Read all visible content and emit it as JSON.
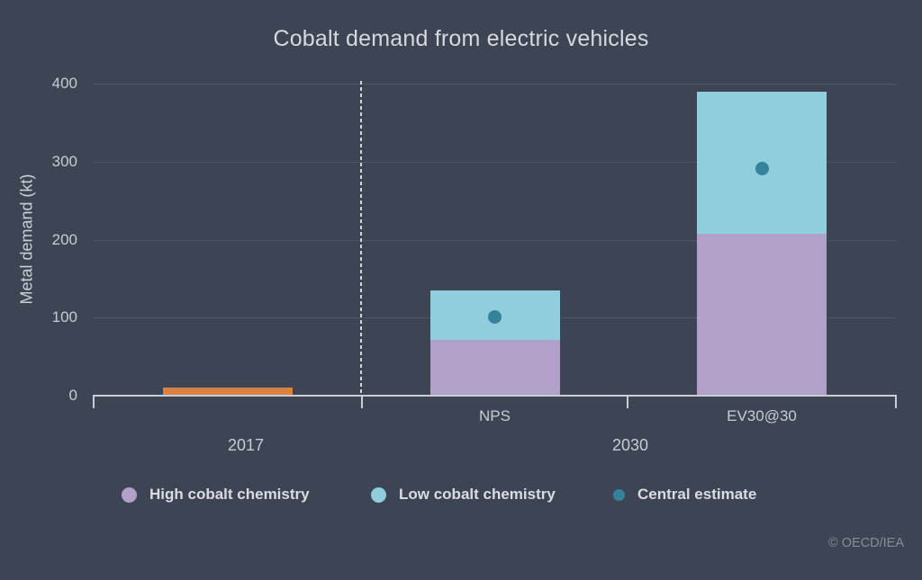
{
  "title": "Cobalt demand from electric vehicles",
  "copyright": "© OECD/IEA",
  "colors": {
    "background": "#3d4554",
    "orange": "#d98140",
    "purple": "#b1a1c9",
    "blue": "#90cedd",
    "teal": "#34839b",
    "axis": "#c8cdd8",
    "grid": "#4d5665",
    "divider": "#d2d6de"
  },
  "legend": [
    {
      "label": "High cobalt chemistry",
      "color": "#b1a1c9",
      "marker": "circle-large"
    },
    {
      "label": "Low cobalt chemistry",
      "color": "#90cedd",
      "marker": "circle-large"
    },
    {
      "label": "Central estimate",
      "color": "#34839b",
      "marker": "circle-small"
    }
  ],
  "chart_data": {
    "type": "bar",
    "title": "Cobalt demand from electric vehicles",
    "ylabel": "Metal demand (kt)",
    "ylim": [
      0,
      400
    ],
    "yticks": [
      0,
      100,
      200,
      300,
      400
    ],
    "grid": true,
    "unit": "kt",
    "legend_position": "bottom",
    "categories": [
      "2017",
      "NPS",
      "EV30@30"
    ],
    "group_labels": [
      "2017",
      "2030"
    ],
    "bars": [
      {
        "category": "2017",
        "group": "2017",
        "segments": [
          {
            "name": "2017 demand",
            "color_key": "orange",
            "from": 0,
            "to": 11
          }
        ],
        "central_estimate": null
      },
      {
        "category": "NPS",
        "group": "2030",
        "segments": [
          {
            "name": "High cobalt chemistry",
            "color_key": "purple",
            "from": 0,
            "to": 72
          },
          {
            "name": "Low cobalt chemistry",
            "color_key": "blue",
            "from": 72,
            "to": 135
          }
        ],
        "central_estimate": 101
      },
      {
        "category": "EV30@30",
        "group": "2030",
        "segments": [
          {
            "name": "High cobalt chemistry",
            "color_key": "purple",
            "from": 0,
            "to": 208
          },
          {
            "name": "Low cobalt chemistry",
            "color_key": "blue",
            "from": 208,
            "to": 390
          }
        ],
        "central_estimate": 291
      }
    ]
  }
}
